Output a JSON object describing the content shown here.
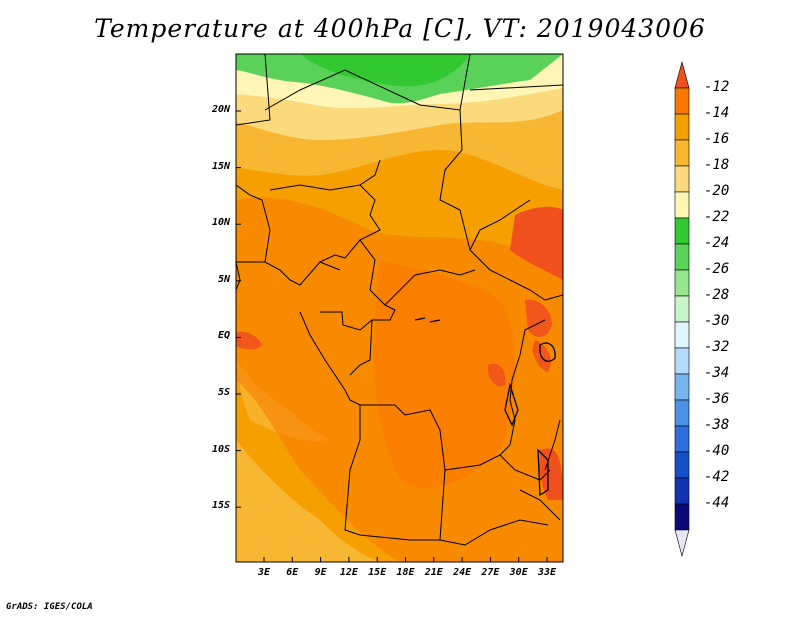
{
  "title": "Temperature at 400hPa [C], VT: 2019043006",
  "credit": "GrADS: IGES/COLA",
  "lat_ticks": [
    "20N",
    "15N",
    "10N",
    "5N",
    "EQ",
    "5S",
    "10S",
    "15S"
  ],
  "lon_ticks": [
    "3E",
    "6E",
    "9E",
    "12E",
    "15E",
    "18E",
    "21E",
    "24E",
    "27E",
    "30E",
    "33E"
  ],
  "colorbar": {
    "labels": [
      "-12",
      "-14",
      "-16",
      "-18",
      "-20",
      "-22",
      "-24",
      "-26",
      "-28",
      "-30",
      "-32",
      "-34",
      "-36",
      "-38",
      "-40",
      "-42",
      "-44"
    ],
    "colors": [
      "#f0501e",
      "#fa7800",
      "#f5a000",
      "#f7b733",
      "#fada7d",
      "#fff5b4",
      "#32c832",
      "#5ad25a",
      "#96e68c",
      "#c8f5c8",
      "#e1f5ff",
      "#b4dcfa",
      "#78b4f0",
      "#4b91e6",
      "#2d6edc",
      "#1450c8",
      "#1232b4",
      "#0a0a78",
      "#e6e6f5"
    ]
  }
}
